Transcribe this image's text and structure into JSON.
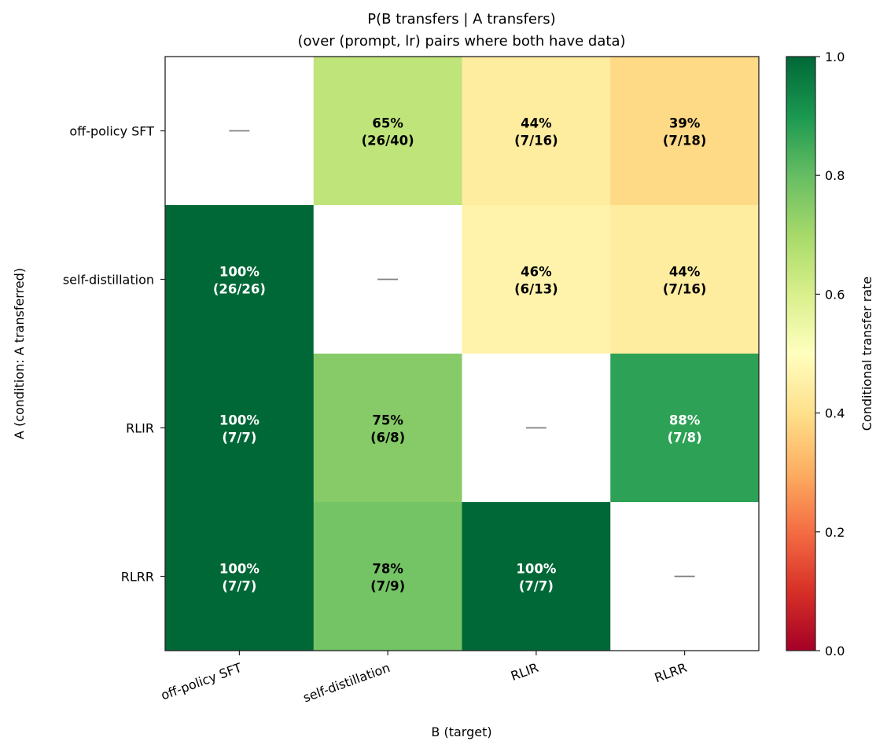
{
  "chart_data": {
    "type": "heatmap",
    "title": "P(B transfers | A transfers)",
    "subtitle": "(over (prompt, lr) pairs where both have data)",
    "xlabel": "B (target)",
    "ylabel": "A (condition: A transferred)",
    "x_categories": [
      "off-policy SFT",
      "self-distillation",
      "RLIR",
      "RLRR"
    ],
    "y_categories": [
      "off-policy SFT",
      "self-distillation",
      "RLIR",
      "RLRR"
    ],
    "values": [
      [
        null,
        0.65,
        0.4375,
        0.3889
      ],
      [
        1.0,
        null,
        0.4615,
        0.4375
      ],
      [
        1.0,
        0.75,
        null,
        0.875
      ],
      [
        1.0,
        0.7778,
        1.0,
        null
      ]
    ],
    "cell_labels": [
      [
        {
          "pct": "",
          "frac": ""
        },
        {
          "pct": "65%",
          "frac": "(26/40)"
        },
        {
          "pct": "44%",
          "frac": "(7/16)"
        },
        {
          "pct": "39%",
          "frac": "(7/18)"
        }
      ],
      [
        {
          "pct": "100%",
          "frac": "(26/26)"
        },
        {
          "pct": "",
          "frac": ""
        },
        {
          "pct": "46%",
          "frac": "(6/13)"
        },
        {
          "pct": "44%",
          "frac": "(7/16)"
        }
      ],
      [
        {
          "pct": "100%",
          "frac": "(7/7)"
        },
        {
          "pct": "75%",
          "frac": "(6/8)"
        },
        {
          "pct": "",
          "frac": ""
        },
        {
          "pct": "88%",
          "frac": "(7/8)"
        }
      ],
      [
        {
          "pct": "100%",
          "frac": "(7/7)"
        },
        {
          "pct": "78%",
          "frac": "(7/9)"
        },
        {
          "pct": "100%",
          "frac": "(7/7)"
        },
        {
          "pct": "",
          "frac": ""
        }
      ]
    ],
    "diagonal_marker": "—",
    "colormap": "RdYlGn",
    "vmin": 0.0,
    "vmax": 1.0,
    "colorbar": {
      "label": "Conditional transfer rate",
      "ticks": [
        0.0,
        0.2,
        0.4,
        0.6,
        0.8,
        1.0
      ],
      "tick_labels": [
        "0.0",
        "0.2",
        "0.4",
        "0.6",
        "0.8",
        "1.0"
      ],
      "placement": "right"
    },
    "text_colors": {
      "dark": "#000000",
      "light": "#ffffff"
    },
    "grid": false
  }
}
